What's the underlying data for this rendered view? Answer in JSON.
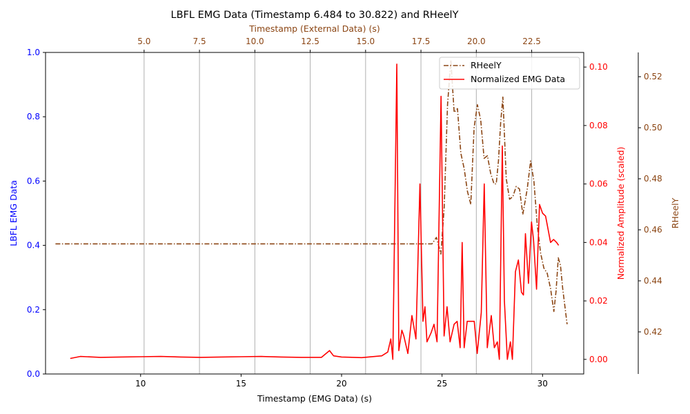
{
  "chart_data": {
    "type": "line",
    "title": "LBFL EMG Data (Timestamp 6.484 to 30.822) and RHeelY",
    "colors": {
      "primary_axis": "#0000ff",
      "emg_series": "#ff0000",
      "rheel_series": "#8b4513",
      "grid": "#b0b0b0"
    },
    "grid": "vertical lines at top x-axis ticks",
    "legend_position": "top-right",
    "x_bottom": {
      "label": "Timestamp (EMG Data) (s)",
      "range": [
        5.27,
        32.05
      ],
      "ticks": [
        10,
        15,
        20,
        25,
        30
      ],
      "tick_labels": [
        "10",
        "15",
        "20",
        "25",
        "30"
      ]
    },
    "x_top": {
      "label": "Timestamp (External Data) (s)",
      "range": [
        0.55,
        24.85
      ],
      "ticks": [
        5.0,
        7.5,
        10.0,
        12.5,
        15.0,
        17.5,
        20.0,
        22.5
      ],
      "tick_labels": [
        "5.0",
        "7.5",
        "10.0",
        "12.5",
        "15.0",
        "17.5",
        "20.0",
        "22.5"
      ]
    },
    "y_left": {
      "label": "LBFL EMG Data",
      "range": [
        0.0,
        1.0
      ],
      "ticks": [
        0.0,
        0.2,
        0.4,
        0.6,
        0.8,
        1.0
      ],
      "tick_labels": [
        "0.0",
        "0.2",
        "0.4",
        "0.6",
        "0.8",
        "1.0"
      ]
    },
    "y_right1": {
      "label": "Normalized Amplitude (scaled)",
      "range": [
        -0.005,
        0.105
      ],
      "ticks": [
        0.0,
        0.02,
        0.04,
        0.06,
        0.08,
        0.1
      ],
      "tick_labels": [
        "0.00",
        "0.02",
        "0.04",
        "0.06",
        "0.08",
        "0.10"
      ]
    },
    "y_right2": {
      "label": "RHeelY",
      "range": [
        0.4035,
        0.5295
      ],
      "ticks": [
        0.42,
        0.44,
        0.46,
        0.48,
        0.5,
        0.52
      ],
      "tick_labels": [
        "0.42",
        "0.44",
        "0.46",
        "0.48",
        "0.50",
        "0.52"
      ]
    },
    "series": [
      {
        "name": "RHeelY",
        "axis": "top_x / right2_y",
        "style": "dash-dot",
        "x": [
          1.0,
          3.0,
          6.0,
          9.0,
          12.0,
          15.0,
          17.0,
          18.0,
          18.2,
          18.4,
          18.55,
          18.7,
          18.85,
          19.0,
          19.15,
          19.3,
          19.45,
          19.6,
          19.75,
          19.9,
          20.05,
          20.2,
          20.35,
          20.5,
          20.65,
          20.8,
          20.9,
          21.0,
          21.1,
          21.2,
          21.35,
          21.5,
          21.65,
          21.8,
          21.95,
          22.1,
          22.3,
          22.45,
          22.6,
          22.75,
          22.9,
          23.05,
          23.2,
          23.35,
          23.5,
          23.6,
          23.7,
          23.8,
          23.9,
          24.0,
          24.1
        ],
        "y": [
          0.4545,
          0.4545,
          0.4545,
          0.4545,
          0.4545,
          0.4545,
          0.4545,
          0.4545,
          0.457,
          0.4505,
          0.469,
          0.509,
          0.5265,
          0.506,
          0.5075,
          0.49,
          0.484,
          0.475,
          0.47,
          0.5,
          0.509,
          0.503,
          0.488,
          0.489,
          0.482,
          0.478,
          0.478,
          0.487,
          0.502,
          0.512,
          0.48,
          0.472,
          0.473,
          0.477,
          0.476,
          0.466,
          0.476,
          0.487,
          0.479,
          0.462,
          0.451,
          0.445,
          0.443,
          0.437,
          0.428,
          0.436,
          0.449,
          0.446,
          0.437,
          0.43,
          0.423
        ]
      },
      {
        "name": "Normalized EMG Data",
        "axis": "bottom_x / right1_y",
        "style": "solid",
        "x": [
          6.5,
          7.0,
          8.0,
          9.0,
          10.0,
          11.0,
          12.0,
          13.0,
          14.0,
          15.0,
          16.0,
          17.0,
          18.0,
          19.0,
          19.4,
          19.6,
          20.0,
          21.0,
          22.0,
          22.3,
          22.45,
          22.55,
          22.75,
          22.85,
          23.0,
          23.1,
          23.3,
          23.5,
          23.7,
          23.9,
          24.05,
          24.15,
          24.25,
          24.45,
          24.6,
          24.75,
          24.95,
          25.1,
          25.25,
          25.4,
          25.6,
          25.75,
          25.9,
          26.0,
          26.1,
          26.25,
          26.45,
          26.6,
          26.75,
          26.95,
          27.1,
          27.25,
          27.45,
          27.6,
          27.75,
          27.85,
          28.0,
          28.1,
          28.25,
          28.4,
          28.5,
          28.65,
          28.8,
          28.95,
          29.05,
          29.15,
          29.3,
          29.45,
          29.55,
          29.7,
          29.85,
          30.0,
          30.15,
          30.4,
          30.55,
          30.7,
          30.8
        ],
        "y": [
          0.0003,
          0.001,
          0.0007,
          0.0008,
          0.0009,
          0.001,
          0.0008,
          0.0007,
          0.0008,
          0.0009,
          0.001,
          0.0008,
          0.0007,
          0.0007,
          0.003,
          0.0012,
          0.0008,
          0.0006,
          0.0012,
          0.0025,
          0.007,
          0.0,
          0.101,
          0.003,
          0.01,
          0.008,
          0.002,
          0.015,
          0.007,
          0.06,
          0.013,
          0.018,
          0.006,
          0.009,
          0.012,
          0.006,
          0.09,
          0.008,
          0.018,
          0.006,
          0.012,
          0.013,
          0.004,
          0.04,
          0.004,
          0.013,
          0.013,
          0.013,
          0.002,
          0.016,
          0.06,
          0.004,
          0.015,
          0.004,
          0.006,
          0.0,
          0.073,
          0.02,
          0.0,
          0.006,
          0.0,
          0.03,
          0.034,
          0.023,
          0.022,
          0.043,
          0.026,
          0.047,
          0.041,
          0.024,
          0.053,
          0.05,
          0.049,
          0.04,
          0.041,
          0.04,
          0.039
        ]
      }
    ]
  }
}
